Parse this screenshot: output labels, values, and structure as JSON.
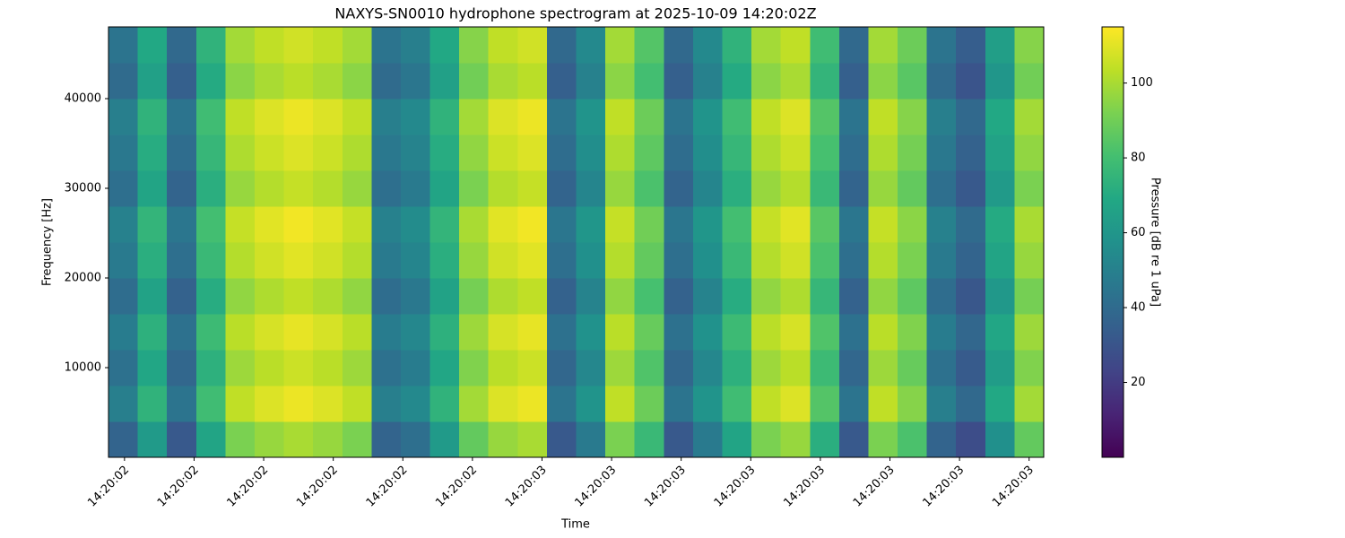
{
  "chart_data": {
    "type": "heatmap",
    "title": "NAXYS-SN0010 hydrophone spectrogram at 2025-10-09 14:20:02Z",
    "xlabel": "Time",
    "ylabel": "Frequency [Hz]",
    "colorbar_label": "Pressure [dB re 1 uPa]",
    "colormap": "viridis",
    "x_edges": [
      2.427,
      2.469,
      2.511,
      2.553,
      2.595,
      2.637,
      2.679,
      2.721,
      2.763,
      2.805,
      2.847,
      2.889,
      2.931,
      2.973,
      3.015,
      3.057,
      3.099,
      3.141,
      3.183,
      3.225,
      3.267,
      3.309,
      3.351,
      3.393,
      3.435,
      3.477,
      3.519,
      3.561,
      3.603,
      3.645,
      3.687,
      3.729,
      3.771
    ],
    "y_edges": [
      0,
      4000,
      8000,
      12000,
      16000,
      20000,
      24000,
      28000,
      32000,
      36000,
      40000,
      44000,
      48000
    ],
    "z": [
      [
        37,
        62,
        32,
        67,
        92,
        97,
        100,
        97,
        92,
        37,
        42,
        62,
        87,
        97,
        100,
        32,
        47,
        92,
        77,
        32,
        47,
        67,
        92,
        97,
        72,
        32,
        92,
        82,
        37,
        27,
        57,
        87
      ],
      [
        49,
        74,
        44,
        79,
        104,
        109,
        112,
        109,
        104,
        49,
        54,
        74,
        99,
        109,
        112,
        44,
        59,
        104,
        89,
        44,
        59,
        79,
        104,
        109,
        84,
        44,
        104,
        94,
        49,
        39,
        69,
        99
      ],
      [
        43,
        68,
        38,
        73,
        98,
        103,
        106,
        103,
        98,
        43,
        48,
        68,
        93,
        103,
        106,
        38,
        53,
        98,
        83,
        38,
        53,
        73,
        98,
        103,
        78,
        38,
        98,
        88,
        43,
        33,
        63,
        93
      ],
      [
        48,
        73,
        43,
        78,
        103,
        108,
        111,
        108,
        103,
        48,
        53,
        73,
        98,
        108,
        111,
        43,
        58,
        103,
        88,
        43,
        58,
        78,
        103,
        108,
        83,
        43,
        103,
        93,
        48,
        38,
        68,
        98
      ],
      [
        41,
        66,
        36,
        71,
        96,
        101,
        104,
        101,
        96,
        41,
        46,
        66,
        91,
        101,
        104,
        36,
        51,
        96,
        81,
        36,
        51,
        71,
        96,
        101,
        76,
        36,
        96,
        86,
        41,
        31,
        61,
        91
      ],
      [
        47,
        72,
        42,
        77,
        102,
        107,
        110,
        107,
        102,
        47,
        52,
        72,
        97,
        107,
        110,
        42,
        57,
        102,
        87,
        42,
        57,
        77,
        102,
        107,
        82,
        42,
        102,
        92,
        47,
        37,
        67,
        97
      ],
      [
        50,
        75,
        45,
        80,
        105,
        110,
        113,
        110,
        105,
        50,
        55,
        75,
        100,
        110,
        113,
        45,
        60,
        105,
        90,
        45,
        60,
        80,
        105,
        110,
        85,
        45,
        105,
        95,
        50,
        40,
        70,
        100
      ],
      [
        42,
        67,
        37,
        72,
        97,
        102,
        105,
        102,
        97,
        42,
        47,
        67,
        92,
        102,
        105,
        37,
        52,
        97,
        82,
        37,
        52,
        72,
        97,
        102,
        77,
        37,
        97,
        87,
        42,
        32,
        62,
        92
      ],
      [
        46,
        71,
        41,
        76,
        101,
        106,
        109,
        106,
        101,
        46,
        51,
        71,
        96,
        106,
        109,
        41,
        56,
        101,
        86,
        41,
        56,
        76,
        101,
        106,
        81,
        41,
        101,
        91,
        46,
        36,
        66,
        96
      ],
      [
        49,
        74,
        44,
        79,
        104,
        109,
        112,
        109,
        104,
        49,
        54,
        74,
        99,
        109,
        112,
        44,
        59,
        104,
        89,
        44,
        59,
        79,
        104,
        109,
        84,
        44,
        104,
        94,
        49,
        39,
        69,
        99
      ],
      [
        40,
        65,
        35,
        70,
        95,
        100,
        103,
        100,
        95,
        40,
        45,
        65,
        90,
        100,
        103,
        35,
        50,
        95,
        80,
        35,
        50,
        70,
        95,
        100,
        75,
        35,
        95,
        85,
        40,
        30,
        60,
        90
      ],
      [
        44,
        69,
        39,
        74,
        99,
        104,
        107,
        104,
        99,
        44,
        49,
        69,
        94,
        104,
        107,
        39,
        54,
        99,
        84,
        39,
        54,
        74,
        99,
        104,
        79,
        39,
        99,
        89,
        44,
        34,
        64,
        94
      ]
    ],
    "xlim": [
      2.427,
      3.771
    ],
    "xticks": [
      {
        "value": 2.45,
        "label": "14:20:02"
      },
      {
        "value": 2.55,
        "label": "14:20:02"
      },
      {
        "value": 2.65,
        "label": "14:20:02"
      },
      {
        "value": 2.75,
        "label": "14:20:02"
      },
      {
        "value": 2.85,
        "label": "14:20:02"
      },
      {
        "value": 2.95,
        "label": "14:20:02"
      },
      {
        "value": 3.05,
        "label": "14:20:03"
      },
      {
        "value": 3.15,
        "label": "14:20:03"
      },
      {
        "value": 3.25,
        "label": "14:20:03"
      },
      {
        "value": 3.35,
        "label": "14:20:03"
      },
      {
        "value": 3.45,
        "label": "14:20:03"
      },
      {
        "value": 3.55,
        "label": "14:20:03"
      },
      {
        "value": 3.65,
        "label": "14:20:03"
      },
      {
        "value": 3.75,
        "label": "14:20:03"
      }
    ],
    "ylim": [
      0,
      48000
    ],
    "yticks": [
      10000,
      20000,
      30000,
      40000
    ],
    "clim": [
      0,
      115
    ],
    "cticks": [
      20,
      40,
      60,
      80,
      100
    ]
  }
}
